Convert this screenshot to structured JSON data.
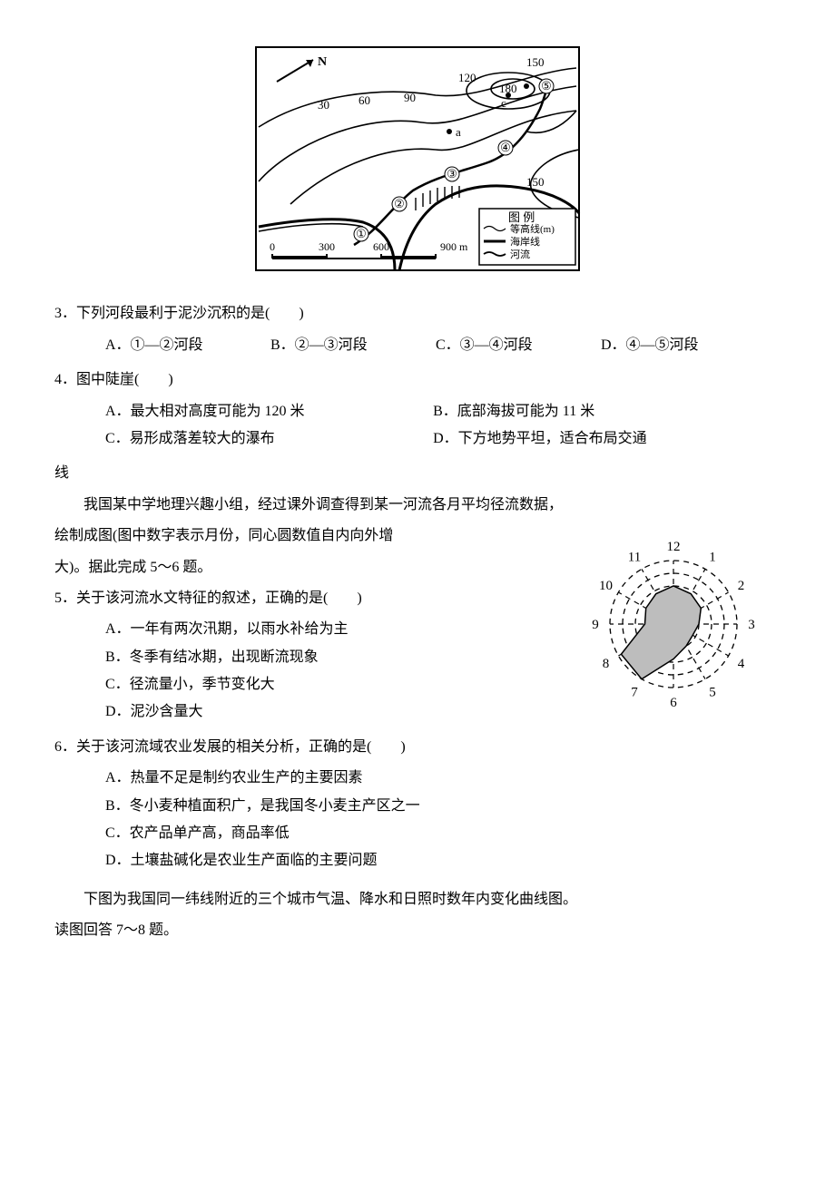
{
  "map": {
    "north_label": "N",
    "contours": [
      "30",
      "60",
      "90",
      "120",
      "150",
      "180",
      "150"
    ],
    "points": [
      "a",
      "c"
    ],
    "circles": [
      "①",
      "②",
      "③",
      "④",
      "⑤"
    ],
    "legend_title": "图 例",
    "legend_items": [
      "等高线(m)",
      "海岸线",
      "河流"
    ],
    "scale_ticks": [
      "0",
      "300",
      "600",
      "900 m"
    ],
    "colors": {
      "bg": "#ffffff",
      "line": "#000000",
      "cliff": "#000000"
    }
  },
  "q3": {
    "stem": "3．下列河段最利于泥沙沉积的是(　　)",
    "opts": {
      "A": "A．①—②河段",
      "B": "B．②—③河段",
      "C": "C．③—④河段",
      "D": "D．④—⑤河段"
    }
  },
  "q4": {
    "stem": "4．图中陡崖(　　)",
    "opts": {
      "A": "A．最大相对高度可能为 120 米",
      "B": "B．底部海拔可能为 11 米",
      "C": "C．易形成落差较大的瀑布",
      "D": "D．下方地势平坦，适合布局交通"
    },
    "trailing": "线"
  },
  "passage56_a": "我国某中学地理兴趣小组，经过课外调查得到某一河流各月平均径流数据，",
  "passage56_b": "绘制成图(图中数字表示月份，同心圆数值自内向外增",
  "passage56_c": "大)。据此完成 5～6 题。",
  "q5": {
    "stem": "5．关于该河流水文特征的叙述，正确的是(　　)",
    "opts": {
      "A": "A．一年有两次汛期，以雨水补给为主",
      "B": "B．冬季有结冰期，出现断流现象",
      "C": "C．径流量小，季节变化大",
      "D": "D．泥沙含量大"
    }
  },
  "q6": {
    "stem": "6．关于该河流域农业发展的相关分析，正确的是(　　)",
    "opts": {
      "A": "A．热量不足是制约农业生产的主要因素",
      "B": "B．冬小麦种植面积广，是我国冬小麦主产区之一",
      "C": "C．农产品单产高，商品率低",
      "D": "D．土壤盐碱化是农业生产面临的主要问题"
    }
  },
  "passage78_a": "下图为我国同一纬线附近的三个城市气温、降水和日照时数年内变化曲线图。",
  "passage78_b": "读图回答 7～8 题。",
  "radar": {
    "months": [
      "1",
      "2",
      "3",
      "4",
      "5",
      "6",
      "7",
      "8",
      "9",
      "10",
      "11",
      "12"
    ],
    "month_label_fontsize": 15,
    "rings": 5,
    "values": [
      0.55,
      0.5,
      0.4,
      0.35,
      0.4,
      0.55,
      1.0,
      0.95,
      0.45,
      0.5,
      0.55,
      0.6
    ],
    "max_r": 70,
    "colors": {
      "bg": "#ffffff",
      "ring": "#000000",
      "spoke": "#000000",
      "fill": "#bdbdbd",
      "fill_stroke": "#000000",
      "label": "#000000"
    },
    "dash": "6,5"
  }
}
